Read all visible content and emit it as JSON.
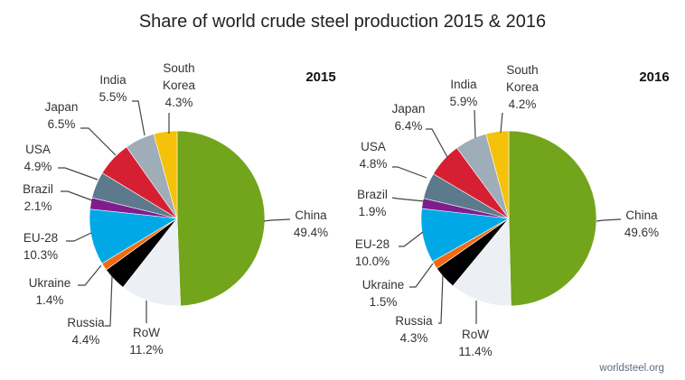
{
  "chart_data": {
    "type": "pie",
    "title": "Share of world crude steel production 2015 & 2016",
    "source": "worldsteel.org",
    "unit": "%",
    "categories": [
      "China",
      "RoW",
      "Russia",
      "Ukraine",
      "EU-28",
      "Brazil",
      "USA",
      "Japan",
      "India",
      "South Korea"
    ],
    "colors": {
      "China": "#72a51c",
      "RoW": "#eceff3",
      "Russia": "#000000",
      "Ukraine": "#f26a10",
      "EU-28": "#00a9e6",
      "Brazil": "#7f1d8e",
      "USA": "#5c7a8c",
      "Japan": "#d71f33",
      "India": "#9eadb8",
      "South Korea": "#f5c10a"
    },
    "charts": [
      {
        "year": "2015",
        "slices": [
          {
            "label": "China",
            "display_label": [
              "China"
            ],
            "value": 49.4,
            "value_text": "49.4%"
          },
          {
            "label": "RoW",
            "display_label": [
              "RoW"
            ],
            "value": 11.2,
            "value_text": "11.2%"
          },
          {
            "label": "Russia",
            "display_label": [
              "Russia"
            ],
            "value": 4.4,
            "value_text": "4.4%"
          },
          {
            "label": "Ukraine",
            "display_label": [
              "Ukraine"
            ],
            "value": 1.4,
            "value_text": "1.4%"
          },
          {
            "label": "EU-28",
            "display_label": [
              "EU-28"
            ],
            "value": 10.3,
            "value_text": "10.3%"
          },
          {
            "label": "Brazil",
            "display_label": [
              "Brazil"
            ],
            "value": 2.1,
            "value_text": "2.1%"
          },
          {
            "label": "USA",
            "display_label": [
              "USA"
            ],
            "value": 4.9,
            "value_text": "4.9%"
          },
          {
            "label": "Japan",
            "display_label": [
              "Japan"
            ],
            "value": 6.5,
            "value_text": "6.5%"
          },
          {
            "label": "India",
            "display_label": [
              "India"
            ],
            "value": 5.5,
            "value_text": "5.5%"
          },
          {
            "label": "South Korea",
            "display_label": [
              "South",
              "Korea"
            ],
            "value": 4.3,
            "value_text": "4.3%"
          }
        ]
      },
      {
        "year": "2016",
        "slices": [
          {
            "label": "China",
            "display_label": [
              "China"
            ],
            "value": 49.6,
            "value_text": "49.6%"
          },
          {
            "label": "RoW",
            "display_label": [
              "RoW"
            ],
            "value": 11.4,
            "value_text": "11.4%"
          },
          {
            "label": "Russia",
            "display_label": [
              "Russia"
            ],
            "value": 4.3,
            "value_text": "4.3%"
          },
          {
            "label": "Ukraine",
            "display_label": [
              "Ukraine"
            ],
            "value": 1.5,
            "value_text": "1.5%"
          },
          {
            "label": "EU-28",
            "display_label": [
              "EU-28"
            ],
            "value": 10.0,
            "value_text": "10.0%"
          },
          {
            "label": "Brazil",
            "display_label": [
              "Brazil"
            ],
            "value": 1.9,
            "value_text": "1.9%"
          },
          {
            "label": "USA",
            "display_label": [
              "USA"
            ],
            "value": 4.8,
            "value_text": "4.8%"
          },
          {
            "label": "Japan",
            "display_label": [
              "Japan"
            ],
            "value": 6.4,
            "value_text": "6.4%"
          },
          {
            "label": "India",
            "display_label": [
              "India"
            ],
            "value": 5.9,
            "value_text": "5.9%"
          },
          {
            "label": "South Korea",
            "display_label": [
              "South",
              "Korea"
            ],
            "value": 4.2,
            "value_text": "4.2%"
          }
        ]
      }
    ]
  }
}
